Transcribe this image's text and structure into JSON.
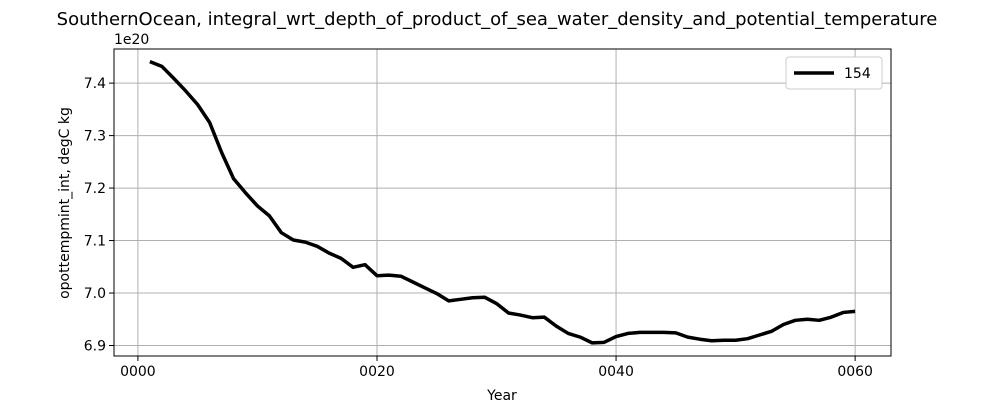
{
  "chart_data": {
    "type": "line",
    "title": "SouthernOcean, integral_wrt_depth_of_product_of_sea_water_density_and_potential_temperature",
    "xlabel": "Year",
    "ylabel": "opottempmint_int, degC kg",
    "y_offset_label": "1e20",
    "xlim": [
      -2,
      63
    ],
    "ylim": [
      6.88,
      7.465
    ],
    "grid": true,
    "legend_position": "top-right",
    "x_ticks": [
      0,
      20,
      40,
      60
    ],
    "x_tick_labels": [
      "0000",
      "0020",
      "0040",
      "0060"
    ],
    "y_ticks": [
      6.9,
      7.0,
      7.1,
      7.2,
      7.3,
      7.4
    ],
    "y_tick_labels": [
      "6.9",
      "7.0",
      "7.1",
      "7.2",
      "7.3",
      "7.4"
    ],
    "series": [
      {
        "name": "154",
        "color": "#000000",
        "x": [
          1,
          2,
          3,
          4,
          5,
          6,
          7,
          8,
          9,
          10,
          11,
          12,
          13,
          14,
          15,
          16,
          17,
          18,
          19,
          20,
          21,
          22,
          23,
          24,
          25,
          26,
          27,
          28,
          29,
          30,
          31,
          32,
          33,
          34,
          35,
          36,
          37,
          38,
          39,
          40,
          41,
          42,
          43,
          44,
          45,
          46,
          47,
          48,
          49,
          50,
          51,
          52,
          53,
          54,
          55,
          56,
          57,
          58,
          59,
          60
        ],
        "values": [
          7.441,
          7.432,
          7.409,
          7.385,
          7.359,
          7.325,
          7.268,
          7.218,
          7.191,
          7.166,
          7.147,
          7.115,
          7.101,
          7.097,
          7.089,
          7.076,
          7.066,
          7.049,
          7.054,
          7.033,
          7.034,
          7.032,
          7.021,
          7.01,
          6.999,
          6.985,
          6.988,
          6.991,
          6.992,
          6.98,
          6.962,
          6.958,
          6.953,
          6.954,
          6.937,
          6.923,
          6.916,
          6.905,
          6.906,
          6.917,
          6.923,
          6.925,
          6.925,
          6.925,
          6.924,
          6.916,
          6.912,
          6.909,
          6.91,
          6.91,
          6.913,
          6.92,
          6.927,
          6.94,
          6.948,
          6.95,
          6.948,
          6.954,
          6.963,
          6.965
        ]
      }
    ]
  }
}
